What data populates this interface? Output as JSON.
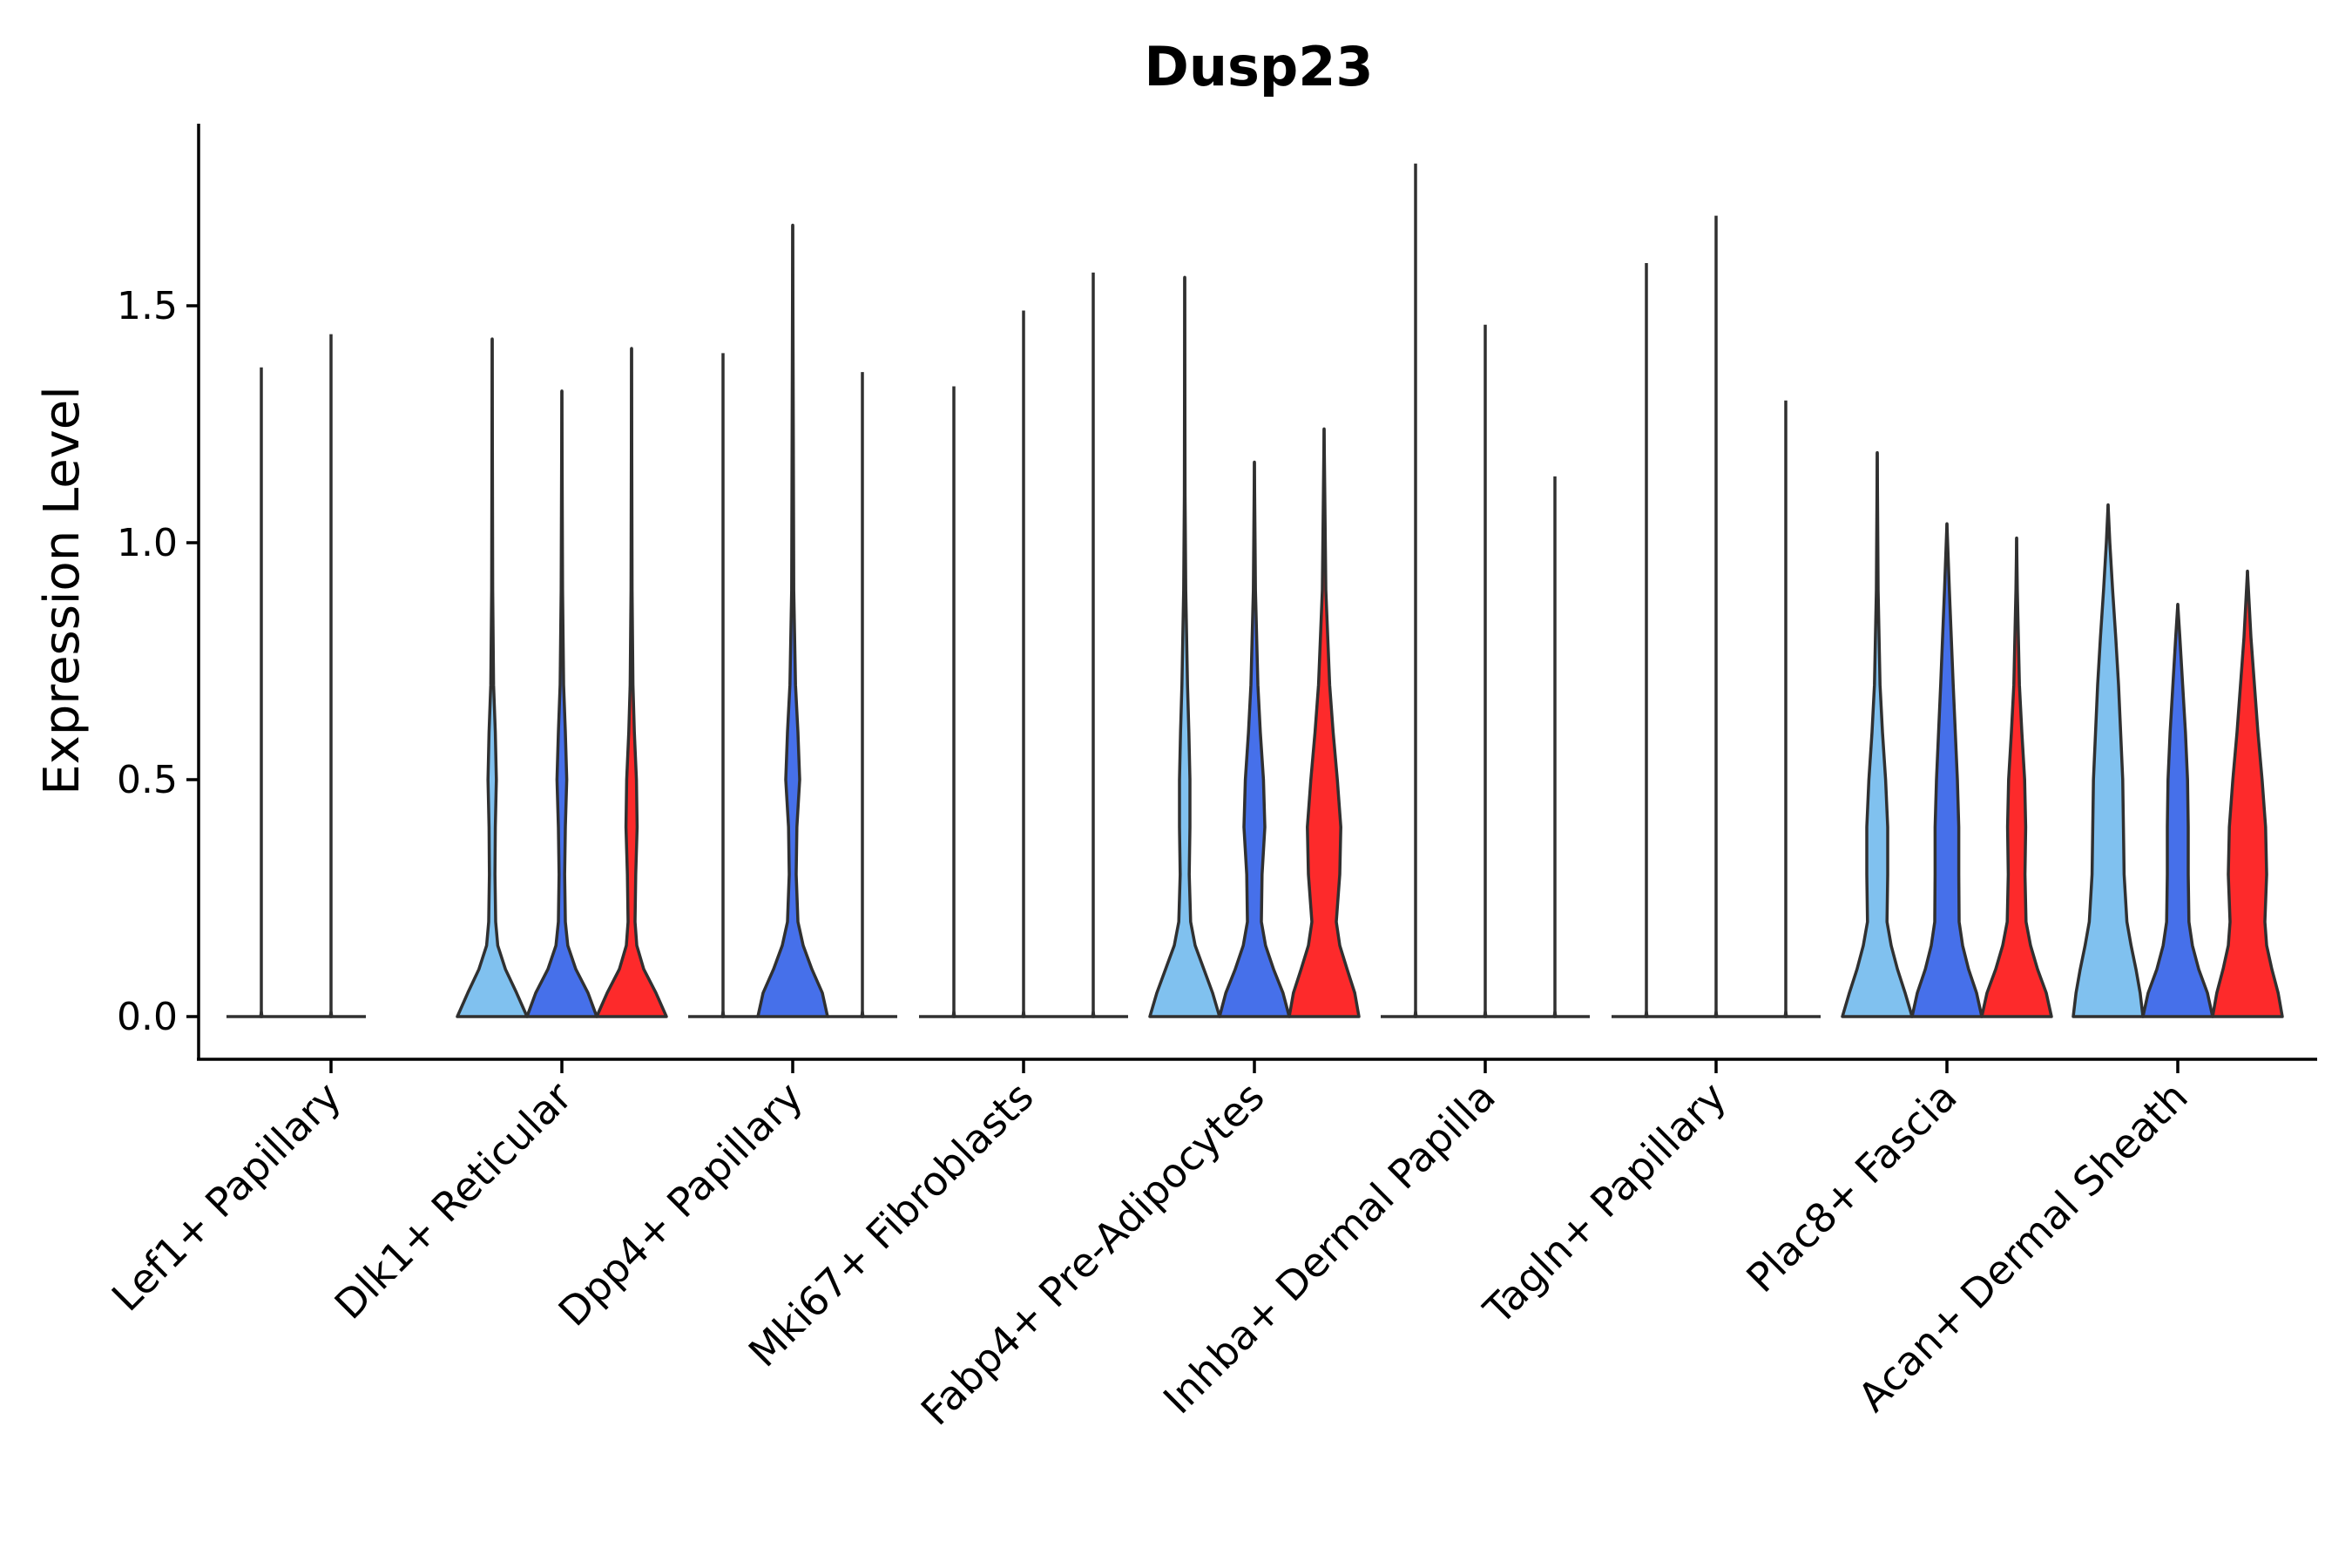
{
  "chart_data": {
    "type": "violin",
    "title": "Dusp23",
    "xlabel": "",
    "ylabel": "Expression Level",
    "ylim": [
      -0.09,
      1.88
    ],
    "yticks": [
      0.0,
      0.5,
      1.0,
      1.5
    ],
    "ytick_labels": [
      "0.0",
      "0.5",
      "1.0",
      "1.5"
    ],
    "series_colors": [
      "#80c1ef",
      "#4670ea",
      "#fd2a2b"
    ],
    "categories": [
      "Lef1+ Papillary",
      "Dlk1+ Reticular",
      "Dpp4+ Papillary",
      "Mki67+ Fibroblasts",
      "Fabp4+ Pre-Adipocytes",
      "Inhba+ Dermal Papilla",
      "Tagln+ Papillary",
      "Plac8+ Fascia",
      "Acan+ Dermal Sheath"
    ],
    "violins": [
      [
        {
          "max": 1.37,
          "peak": 0.0,
          "kde": [
            [
              0.0,
              0.02
            ],
            [
              0.01,
              0
            ]
          ]
        },
        {
          "max": 1.44,
          "peak": 0.0,
          "kde": [
            [
              0.0,
              0.02
            ],
            [
              0.01,
              0
            ]
          ]
        },
        null
      ],
      [
        {
          "max": 1.43,
          "kde": [
            [
              0.0,
              1.0
            ],
            [
              0.05,
              0.7
            ],
            [
              0.1,
              0.38
            ],
            [
              0.15,
              0.16
            ],
            [
              0.2,
              0.1
            ],
            [
              0.3,
              0.08
            ],
            [
              0.4,
              0.09
            ],
            [
              0.5,
              0.12
            ],
            [
              0.6,
              0.09
            ],
            [
              0.7,
              0.04
            ],
            [
              0.9,
              0.015
            ],
            [
              1.43,
              0
            ]
          ]
        },
        {
          "max": 1.32,
          "kde": [
            [
              0.0,
              1.0
            ],
            [
              0.05,
              0.75
            ],
            [
              0.1,
              0.4
            ],
            [
              0.15,
              0.17
            ],
            [
              0.2,
              0.1
            ],
            [
              0.3,
              0.08
            ],
            [
              0.4,
              0.1
            ],
            [
              0.5,
              0.14
            ],
            [
              0.6,
              0.1
            ],
            [
              0.7,
              0.05
            ],
            [
              0.9,
              0.02
            ],
            [
              1.32,
              0
            ]
          ]
        },
        {
          "max": 1.41,
          "kde": [
            [
              0.0,
              1.0
            ],
            [
              0.05,
              0.7
            ],
            [
              0.1,
              0.35
            ],
            [
              0.15,
              0.15
            ],
            [
              0.2,
              0.1
            ],
            [
              0.3,
              0.12
            ],
            [
              0.4,
              0.16
            ],
            [
              0.5,
              0.14
            ],
            [
              0.6,
              0.08
            ],
            [
              0.7,
              0.04
            ],
            [
              0.9,
              0.015
            ],
            [
              1.41,
              0
            ]
          ]
        }
      ],
      [
        {
          "max": 1.4,
          "peak": 0.0,
          "kde": [
            [
              0.0,
              0.02
            ],
            [
              0.01,
              0
            ]
          ]
        },
        {
          "max": 1.67,
          "kde": [
            [
              0.0,
              1.0
            ],
            [
              0.05,
              0.85
            ],
            [
              0.1,
              0.55
            ],
            [
              0.15,
              0.3
            ],
            [
              0.2,
              0.15
            ],
            [
              0.3,
              0.1
            ],
            [
              0.4,
              0.12
            ],
            [
              0.5,
              0.2
            ],
            [
              0.6,
              0.15
            ],
            [
              0.7,
              0.08
            ],
            [
              0.9,
              0.03
            ],
            [
              1.67,
              0
            ]
          ]
        },
        {
          "max": 1.36,
          "peak": 0.0,
          "kde": [
            [
              0.0,
              0.02
            ],
            [
              0.01,
              0
            ]
          ]
        }
      ],
      [
        {
          "max": 1.33,
          "peak": 0.0,
          "kde": [
            [
              0.0,
              0.02
            ],
            [
              0.01,
              0
            ]
          ]
        },
        {
          "max": 1.49,
          "peak": 0.0,
          "kde": [
            [
              0.0,
              0.02
            ],
            [
              0.01,
              0
            ]
          ]
        },
        {
          "max": 1.57,
          "peak": 0.0,
          "kde": [
            [
              0.0,
              0.02
            ],
            [
              0.01,
              0
            ]
          ]
        }
      ],
      [
        {
          "max": 1.56,
          "kde": [
            [
              0.0,
              1.0
            ],
            [
              0.05,
              0.8
            ],
            [
              0.1,
              0.55
            ],
            [
              0.15,
              0.3
            ],
            [
              0.2,
              0.17
            ],
            [
              0.3,
              0.13
            ],
            [
              0.4,
              0.15
            ],
            [
              0.5,
              0.15
            ],
            [
              0.6,
              0.12
            ],
            [
              0.7,
              0.08
            ],
            [
              0.9,
              0.03
            ],
            [
              1.1,
              0.01
            ],
            [
              1.56,
              0
            ]
          ]
        },
        {
          "max": 1.17,
          "kde": [
            [
              0.0,
              1.0
            ],
            [
              0.05,
              0.82
            ],
            [
              0.1,
              0.55
            ],
            [
              0.15,
              0.32
            ],
            [
              0.2,
              0.2
            ],
            [
              0.3,
              0.22
            ],
            [
              0.4,
              0.3
            ],
            [
              0.5,
              0.26
            ],
            [
              0.6,
              0.17
            ],
            [
              0.7,
              0.1
            ],
            [
              0.9,
              0.03
            ],
            [
              1.17,
              0
            ]
          ]
        },
        {
          "max": 1.24,
          "kde": [
            [
              0.0,
              1.0
            ],
            [
              0.05,
              0.88
            ],
            [
              0.1,
              0.66
            ],
            [
              0.15,
              0.45
            ],
            [
              0.2,
              0.35
            ],
            [
              0.3,
              0.45
            ],
            [
              0.4,
              0.48
            ],
            [
              0.5,
              0.38
            ],
            [
              0.6,
              0.26
            ],
            [
              0.7,
              0.16
            ],
            [
              0.9,
              0.05
            ],
            [
              1.24,
              0
            ]
          ]
        }
      ],
      [
        {
          "max": 1.8,
          "peak": 0.0,
          "kde": [
            [
              0.0,
              0.02
            ],
            [
              0.01,
              0
            ]
          ]
        },
        {
          "max": 1.46,
          "peak": 0.0,
          "kde": [
            [
              0.0,
              0.02
            ],
            [
              0.01,
              0
            ]
          ]
        },
        {
          "max": 1.14,
          "peak": 0.0,
          "kde": [
            [
              0.0,
              0.02
            ],
            [
              0.01,
              0
            ]
          ]
        }
      ],
      [
        {
          "max": 1.59,
          "peak": 0.0,
          "kde": [
            [
              0.0,
              0.02
            ],
            [
              0.01,
              0
            ]
          ]
        },
        {
          "max": 1.69,
          "peak": 0.0,
          "kde": [
            [
              0.0,
              0.02
            ],
            [
              0.01,
              0
            ]
          ]
        },
        {
          "max": 1.3,
          "peak": 0.0,
          "kde": [
            [
              0.0,
              0.02
            ],
            [
              0.01,
              0
            ]
          ]
        }
      ],
      [
        {
          "max": 1.19,
          "kde": [
            [
              0.0,
              1.0
            ],
            [
              0.05,
              0.8
            ],
            [
              0.1,
              0.58
            ],
            [
              0.15,
              0.4
            ],
            [
              0.2,
              0.28
            ],
            [
              0.3,
              0.3
            ],
            [
              0.4,
              0.3
            ],
            [
              0.5,
              0.24
            ],
            [
              0.6,
              0.15
            ],
            [
              0.7,
              0.08
            ],
            [
              0.9,
              0.025
            ],
            [
              1.19,
              0
            ]
          ]
        },
        {
          "max": 1.04,
          "kde": [
            [
              0.0,
              1.0
            ],
            [
              0.05,
              0.85
            ],
            [
              0.1,
              0.62
            ],
            [
              0.15,
              0.45
            ],
            [
              0.2,
              0.35
            ],
            [
              0.3,
              0.34
            ],
            [
              0.4,
              0.34
            ],
            [
              0.5,
              0.3
            ],
            [
              0.6,
              0.24
            ],
            [
              0.7,
              0.18
            ],
            [
              0.9,
              0.07
            ],
            [
              1.04,
              0
            ]
          ]
        },
        {
          "max": 1.01,
          "kde": [
            [
              0.0,
              1.0
            ],
            [
              0.05,
              0.85
            ],
            [
              0.1,
              0.6
            ],
            [
              0.15,
              0.4
            ],
            [
              0.2,
              0.27
            ],
            [
              0.3,
              0.24
            ],
            [
              0.4,
              0.26
            ],
            [
              0.5,
              0.23
            ],
            [
              0.6,
              0.15
            ],
            [
              0.7,
              0.08
            ],
            [
              0.9,
              0.02
            ],
            [
              1.01,
              0
            ]
          ]
        }
      ],
      [
        {
          "max": 1.08,
          "kde": [
            [
              0.0,
              1.0
            ],
            [
              0.05,
              0.92
            ],
            [
              0.1,
              0.8
            ],
            [
              0.15,
              0.66
            ],
            [
              0.2,
              0.54
            ],
            [
              0.3,
              0.46
            ],
            [
              0.4,
              0.44
            ],
            [
              0.5,
              0.42
            ],
            [
              0.6,
              0.36
            ],
            [
              0.7,
              0.3
            ],
            [
              0.8,
              0.22
            ],
            [
              0.9,
              0.13
            ],
            [
              1.0,
              0.05
            ],
            [
              1.08,
              0
            ]
          ]
        },
        {
          "max": 0.87,
          "kde": [
            [
              0.0,
              1.0
            ],
            [
              0.05,
              0.85
            ],
            [
              0.1,
              0.6
            ],
            [
              0.15,
              0.42
            ],
            [
              0.2,
              0.32
            ],
            [
              0.3,
              0.3
            ],
            [
              0.4,
              0.3
            ],
            [
              0.5,
              0.28
            ],
            [
              0.6,
              0.22
            ],
            [
              0.7,
              0.14
            ],
            [
              0.8,
              0.06
            ],
            [
              0.87,
              0
            ]
          ]
        },
        {
          "max": 0.94,
          "kde": [
            [
              0.0,
              1.0
            ],
            [
              0.05,
              0.88
            ],
            [
              0.1,
              0.7
            ],
            [
              0.15,
              0.55
            ],
            [
              0.2,
              0.5
            ],
            [
              0.3,
              0.55
            ],
            [
              0.4,
              0.52
            ],
            [
              0.5,
              0.42
            ],
            [
              0.6,
              0.3
            ],
            [
              0.7,
              0.2
            ],
            [
              0.8,
              0.1
            ],
            [
              0.94,
              0
            ]
          ]
        }
      ]
    ]
  }
}
